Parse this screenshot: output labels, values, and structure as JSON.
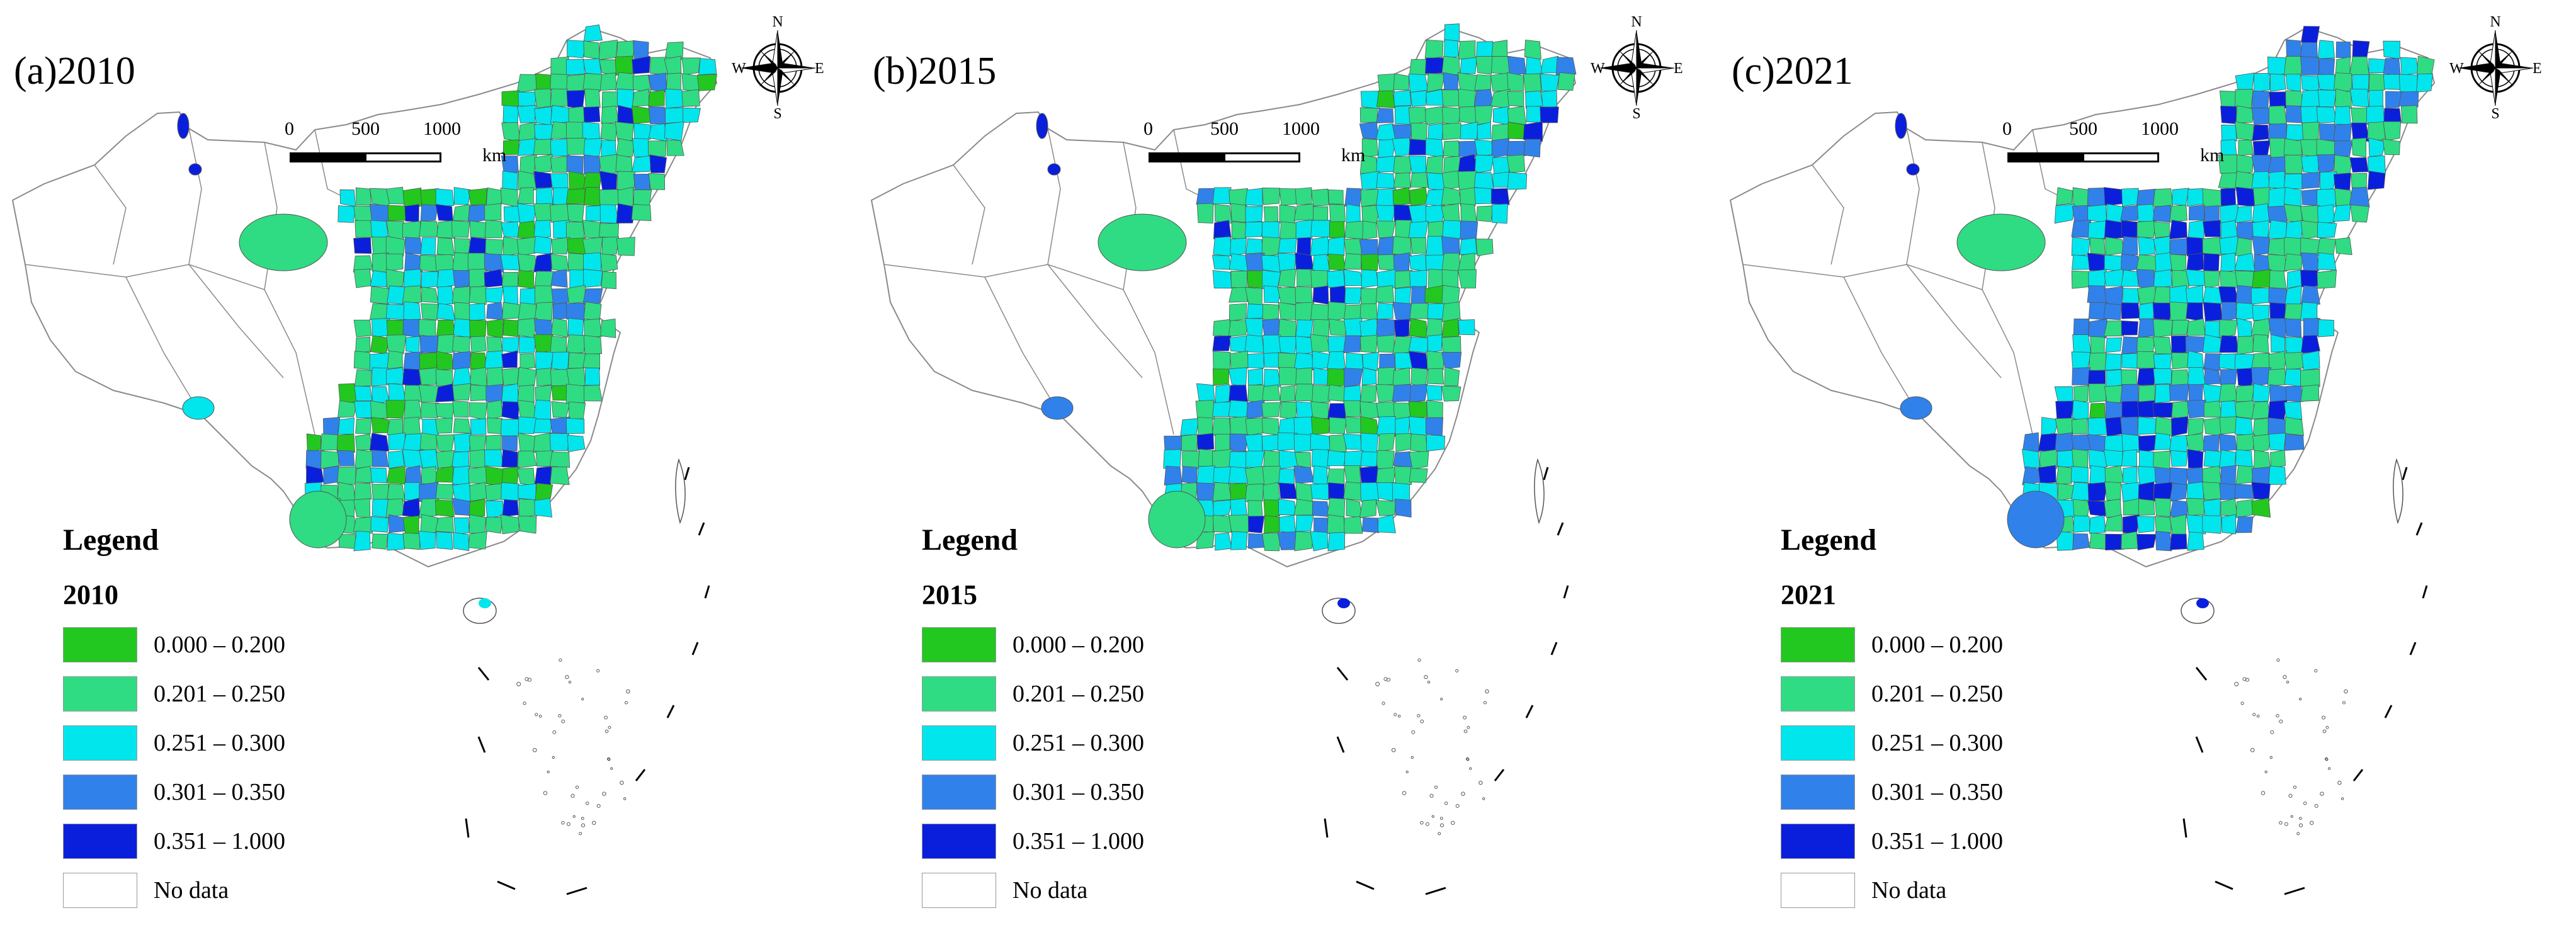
{
  "colors": {
    "class1": "#22c81f",
    "class2": "#2fdc83",
    "class3": "#00e6ec",
    "class4": "#3082ea",
    "class5": "#0a1fdc",
    "nodata": "#ffffff",
    "boundary": "#8a8a8a"
  },
  "legend": {
    "heading": "Legend",
    "classes": [
      {
        "label": "0.000 – 0.200",
        "color": "#22c81f"
      },
      {
        "label": "0.201 – 0.250",
        "color": "#2fdc83"
      },
      {
        "label": "0.251 – 0.300",
        "color": "#00e6ec"
      },
      {
        "label": "0.301 – 0.350",
        "color": "#3082ea"
      },
      {
        "label": "0.351 – 1.000",
        "color": "#0a1fdc"
      },
      {
        "label": "No data",
        "color": "#ffffff"
      }
    ]
  },
  "scale_bar": {
    "ticks": [
      "0",
      "500",
      "1000"
    ],
    "unit": "km"
  },
  "compass": {
    "n": "N",
    "e": "E",
    "s": "S",
    "w": "W"
  },
  "panels": [
    {
      "title": "(a)2010",
      "legend_year": "2010"
    },
    {
      "title": "(b)2015",
      "legend_year": "2015"
    },
    {
      "title": "(c)2021",
      "legend_year": "2021"
    }
  ]
}
